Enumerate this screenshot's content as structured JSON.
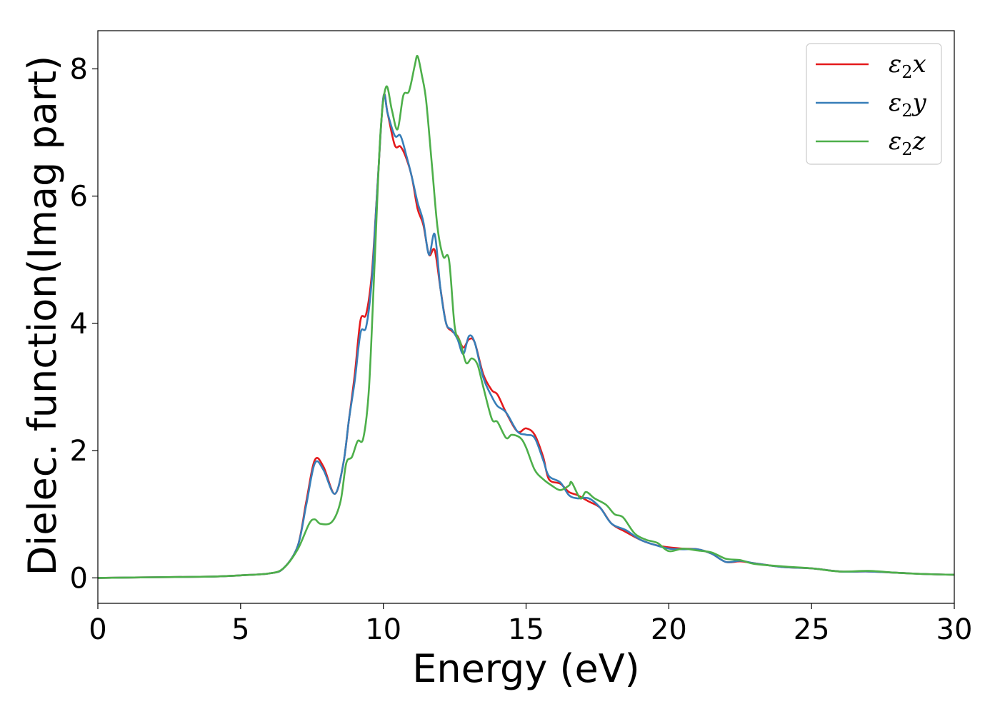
{
  "chart_data": {
    "type": "line",
    "xlabel": "Energy (eV)",
    "ylabel": "Dielec. function(Imag part)",
    "xlim": [
      0,
      30
    ],
    "ylim": [
      -0.4,
      8.6
    ],
    "xticks": [
      0,
      5,
      10,
      15,
      20,
      25,
      30
    ],
    "yticks": [
      0,
      2,
      4,
      6,
      8
    ],
    "grid": false,
    "legend_position": "top-right",
    "series": [
      {
        "name": "ε₂x",
        "legend_main": "ε",
        "legend_sub": "2",
        "legend_tail": "x",
        "color": "#e41a1c",
        "points": [
          [
            0,
            0
          ],
          [
            2,
            0.01
          ],
          [
            4,
            0.02
          ],
          [
            5,
            0.04
          ],
          [
            6,
            0.07
          ],
          [
            6.5,
            0.15
          ],
          [
            7,
            0.5
          ],
          [
            7.3,
            1.2
          ],
          [
            7.6,
            1.85
          ],
          [
            7.9,
            1.75
          ],
          [
            8.3,
            1.32
          ],
          [
            8.6,
            1.8
          ],
          [
            8.8,
            2.5
          ],
          [
            9.0,
            3.2
          ],
          [
            9.2,
            4.05
          ],
          [
            9.4,
            4.15
          ],
          [
            9.6,
            4.8
          ],
          [
            9.8,
            6.2
          ],
          [
            10.0,
            7.55
          ],
          [
            10.15,
            7.3
          ],
          [
            10.4,
            6.8
          ],
          [
            10.6,
            6.78
          ],
          [
            10.8,
            6.6
          ],
          [
            11.0,
            6.3
          ],
          [
            11.2,
            5.8
          ],
          [
            11.4,
            5.55
          ],
          [
            11.6,
            5.08
          ],
          [
            11.8,
            5.15
          ],
          [
            12.0,
            4.55
          ],
          [
            12.2,
            4.0
          ],
          [
            12.4,
            3.88
          ],
          [
            12.6,
            3.8
          ],
          [
            12.8,
            3.62
          ],
          [
            13.0,
            3.75
          ],
          [
            13.2,
            3.7
          ],
          [
            13.5,
            3.2
          ],
          [
            13.8,
            2.95
          ],
          [
            14.0,
            2.88
          ],
          [
            14.3,
            2.6
          ],
          [
            14.7,
            2.3
          ],
          [
            15.0,
            2.35
          ],
          [
            15.3,
            2.25
          ],
          [
            15.6,
            1.9
          ],
          [
            15.8,
            1.55
          ],
          [
            16.2,
            1.48
          ],
          [
            16.5,
            1.35
          ],
          [
            16.8,
            1.3
          ],
          [
            17.2,
            1.2
          ],
          [
            17.6,
            1.1
          ],
          [
            18.0,
            0.85
          ],
          [
            18.5,
            0.72
          ],
          [
            19.0,
            0.6
          ],
          [
            19.5,
            0.52
          ],
          [
            20.0,
            0.48
          ],
          [
            20.5,
            0.46
          ],
          [
            21.0,
            0.45
          ],
          [
            21.5,
            0.38
          ],
          [
            22.0,
            0.25
          ],
          [
            22.5,
            0.26
          ],
          [
            23.0,
            0.23
          ],
          [
            24.0,
            0.17
          ],
          [
            25.0,
            0.15
          ],
          [
            26.0,
            0.1
          ],
          [
            27.0,
            0.1
          ],
          [
            28.0,
            0.08
          ],
          [
            29.0,
            0.06
          ],
          [
            30.0,
            0.05
          ]
        ]
      },
      {
        "name": "ε₂y",
        "legend_main": "ε",
        "legend_sub": "2",
        "legend_tail": "y",
        "color": "#377eb8",
        "points": [
          [
            0,
            0
          ],
          [
            2,
            0.01
          ],
          [
            4,
            0.02
          ],
          [
            5,
            0.04
          ],
          [
            6,
            0.07
          ],
          [
            6.5,
            0.15
          ],
          [
            7,
            0.5
          ],
          [
            7.3,
            1.15
          ],
          [
            7.6,
            1.8
          ],
          [
            7.9,
            1.7
          ],
          [
            8.3,
            1.32
          ],
          [
            8.6,
            1.8
          ],
          [
            8.8,
            2.5
          ],
          [
            9.0,
            3.1
          ],
          [
            9.2,
            3.85
          ],
          [
            9.4,
            3.95
          ],
          [
            9.6,
            4.7
          ],
          [
            9.8,
            6.2
          ],
          [
            10.0,
            7.55
          ],
          [
            10.15,
            7.3
          ],
          [
            10.4,
            6.95
          ],
          [
            10.6,
            6.95
          ],
          [
            10.8,
            6.65
          ],
          [
            11.0,
            6.3
          ],
          [
            11.2,
            5.9
          ],
          [
            11.4,
            5.6
          ],
          [
            11.6,
            5.08
          ],
          [
            11.8,
            5.4
          ],
          [
            12.0,
            4.55
          ],
          [
            12.2,
            4.0
          ],
          [
            12.4,
            3.9
          ],
          [
            12.6,
            3.75
          ],
          [
            12.8,
            3.52
          ],
          [
            13.0,
            3.8
          ],
          [
            13.2,
            3.7
          ],
          [
            13.5,
            3.15
          ],
          [
            13.8,
            2.85
          ],
          [
            14.0,
            2.7
          ],
          [
            14.3,
            2.6
          ],
          [
            14.7,
            2.3
          ],
          [
            15.0,
            2.25
          ],
          [
            15.3,
            2.2
          ],
          [
            15.6,
            1.85
          ],
          [
            15.8,
            1.6
          ],
          [
            16.2,
            1.5
          ],
          [
            16.5,
            1.3
          ],
          [
            16.8,
            1.25
          ],
          [
            17.2,
            1.25
          ],
          [
            17.6,
            1.1
          ],
          [
            18.0,
            0.85
          ],
          [
            18.5,
            0.75
          ],
          [
            19.0,
            0.6
          ],
          [
            19.5,
            0.52
          ],
          [
            20.0,
            0.46
          ],
          [
            20.5,
            0.45
          ],
          [
            21.0,
            0.45
          ],
          [
            21.5,
            0.38
          ],
          [
            22.0,
            0.25
          ],
          [
            22.5,
            0.27
          ],
          [
            23.0,
            0.23
          ],
          [
            24.0,
            0.17
          ],
          [
            25.0,
            0.15
          ],
          [
            26.0,
            0.1
          ],
          [
            27.0,
            0.1
          ],
          [
            28.0,
            0.08
          ],
          [
            29.0,
            0.06
          ],
          [
            30.0,
            0.05
          ]
        ]
      },
      {
        "name": "ε₂z",
        "legend_main": "ε",
        "legend_sub": "2",
        "legend_tail": "z",
        "color": "#4daf4a",
        "points": [
          [
            0,
            0
          ],
          [
            2,
            0.01
          ],
          [
            4,
            0.02
          ],
          [
            5,
            0.04
          ],
          [
            6,
            0.07
          ],
          [
            6.5,
            0.15
          ],
          [
            7,
            0.45
          ],
          [
            7.4,
            0.85
          ],
          [
            7.6,
            0.92
          ],
          [
            7.8,
            0.85
          ],
          [
            8.2,
            0.88
          ],
          [
            8.5,
            1.2
          ],
          [
            8.7,
            1.8
          ],
          [
            8.9,
            1.9
          ],
          [
            9.1,
            2.15
          ],
          [
            9.3,
            2.2
          ],
          [
            9.5,
            3.0
          ],
          [
            9.7,
            5.0
          ],
          [
            9.9,
            7.0
          ],
          [
            10.1,
            7.72
          ],
          [
            10.3,
            7.35
          ],
          [
            10.5,
            7.05
          ],
          [
            10.7,
            7.58
          ],
          [
            10.9,
            7.65
          ],
          [
            11.1,
            8.05
          ],
          [
            11.2,
            8.2
          ],
          [
            11.35,
            7.9
          ],
          [
            11.5,
            7.5
          ],
          [
            11.7,
            6.5
          ],
          [
            11.9,
            5.5
          ],
          [
            12.1,
            5.05
          ],
          [
            12.3,
            5.0
          ],
          [
            12.5,
            3.95
          ],
          [
            12.7,
            3.7
          ],
          [
            12.9,
            3.38
          ],
          [
            13.1,
            3.45
          ],
          [
            13.3,
            3.35
          ],
          [
            13.5,
            3.0
          ],
          [
            13.8,
            2.5
          ],
          [
            14.0,
            2.45
          ],
          [
            14.3,
            2.2
          ],
          [
            14.5,
            2.25
          ],
          [
            14.8,
            2.2
          ],
          [
            15.0,
            2.05
          ],
          [
            15.3,
            1.7
          ],
          [
            15.6,
            1.55
          ],
          [
            15.9,
            1.45
          ],
          [
            16.2,
            1.38
          ],
          [
            16.5,
            1.45
          ],
          [
            16.6,
            1.5
          ],
          [
            16.9,
            1.25
          ],
          [
            17.1,
            1.35
          ],
          [
            17.4,
            1.25
          ],
          [
            17.8,
            1.15
          ],
          [
            18.1,
            1.0
          ],
          [
            18.4,
            0.95
          ],
          [
            18.8,
            0.7
          ],
          [
            19.2,
            0.6
          ],
          [
            19.6,
            0.55
          ],
          [
            20.0,
            0.42
          ],
          [
            20.5,
            0.46
          ],
          [
            21.0,
            0.43
          ],
          [
            21.5,
            0.4
          ],
          [
            22.0,
            0.3
          ],
          [
            22.5,
            0.28
          ],
          [
            23.0,
            0.22
          ],
          [
            24.0,
            0.18
          ],
          [
            25.0,
            0.15
          ],
          [
            26.0,
            0.1
          ],
          [
            27.0,
            0.11
          ],
          [
            28.0,
            0.08
          ],
          [
            29.0,
            0.06
          ],
          [
            30.0,
            0.05
          ]
        ]
      }
    ]
  }
}
